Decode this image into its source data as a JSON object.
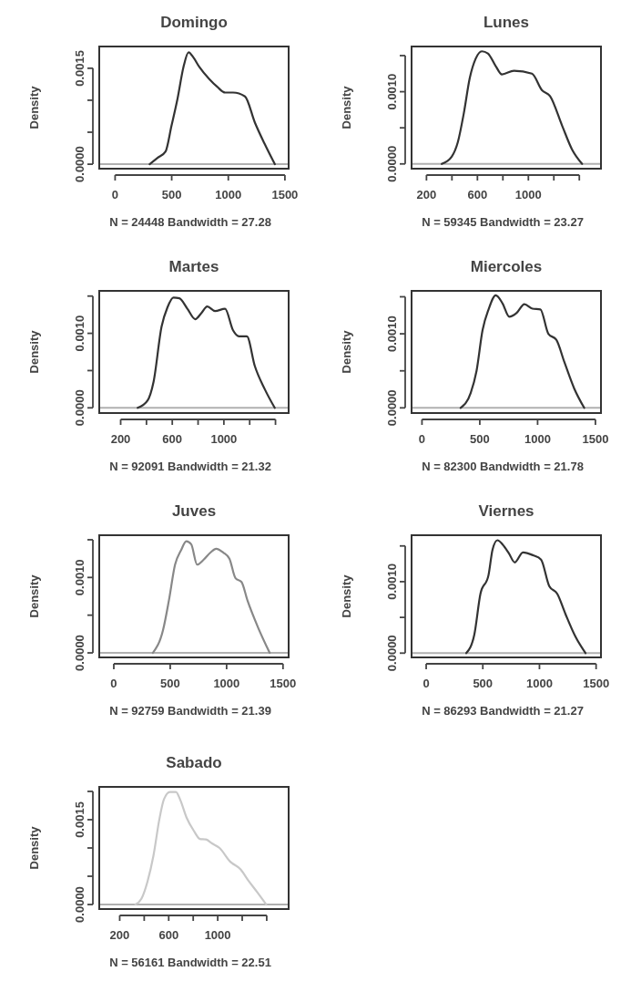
{
  "chart_data": [
    {
      "type": "line",
      "title": "Domingo",
      "xlabel": "N = 24448   Bandwidth = 27.28",
      "ylabel": "Density",
      "x": [
        305,
        375,
        446,
        498,
        551,
        604,
        649,
        691,
        744,
        832,
        902,
        972,
        1042,
        1147,
        1235,
        1323,
        1411
      ],
      "series": [
        {
          "color": "#333333",
          "values": [
            0,
            0.0001,
            0.0002,
            0.0006,
            0.00102,
            0.00152,
            0.00175,
            0.00167,
            0.00152,
            0.00133,
            0.00121,
            0.00112,
            0.00112,
            0.00106,
            0.00065,
            0.00031,
            0
          ]
        }
      ],
      "xlim": [
        -140,
        1533
      ],
      "ylim": [
        -7e-05,
        0.00184
      ],
      "xticks": [
        0,
        500,
        1000,
        1500
      ],
      "yticks": [
        {
          "value": 0,
          "label": "0.0000"
        },
        {
          "value": 0.0005,
          "label": null
        },
        {
          "value": 0.001,
          "label": null
        },
        {
          "value": 0.0015,
          "label": "0.0015"
        }
      ],
      "ref_lines": [
        {
          "axis": "y",
          "value": 0,
          "color": "#b0b0b0"
        }
      ]
    },
    {
      "type": "line",
      "title": "Lunes",
      "xlabel": "N = 59345   Bandwidth = 23.27",
      "ylabel": "Density",
      "x": [
        320,
        398,
        446,
        493,
        540,
        587,
        635,
        682,
        745,
        792,
        887,
        1028,
        1107,
        1170,
        1265,
        1343,
        1422
      ],
      "series": [
        {
          "color": "#333333",
          "values": [
            0,
            0.0001,
            0.0003,
            0.0007,
            0.00119,
            0.00146,
            0.00156,
            0.00153,
            0.00135,
            0.00124,
            0.00129,
            0.00125,
            0.00102,
            0.00094,
            0.00053,
            0.0002,
            0
          ]
        }
      ],
      "xlim": [
        83,
        1570
      ],
      "ylim": [
        -6.6e-05,
        0.001626
      ],
      "xticks": [
        200,
        {
          "value": 400,
          "label": null
        },
        600,
        {
          "value": 800,
          "label": null
        },
        1000,
        {
          "value": 1200,
          "label": null
        },
        {
          "value": 1400,
          "label": null
        }
      ],
      "yticks": [
        {
          "value": 0,
          "label": "0.0000"
        },
        {
          "value": 0.0005,
          "label": null
        },
        {
          "value": 0.001,
          "label": "0.0010"
        },
        {
          "value": 0.0015,
          "label": null
        }
      ],
      "ref_lines": [
        {
          "axis": "y",
          "value": 0,
          "color": "#b0b0b0"
        }
      ]
    },
    {
      "type": "line",
      "title": "Martes",
      "xlabel": "N = 92091   Bandwidth = 21.32",
      "ylabel": "Density",
      "x": [
        332,
        409,
        455,
        517,
        563,
        609,
        655,
        717,
        778,
        825,
        871,
        932,
        1009,
        1071,
        1117,
        1178,
        1240,
        1317,
        1394
      ],
      "series": [
        {
          "color": "#333333",
          "values": [
            0,
            0.0001,
            0.00035,
            0.00109,
            0.00135,
            0.00148,
            0.00147,
            0.00133,
            0.00119,
            0.00127,
            0.00136,
            0.0013,
            0.00133,
            0.00104,
            0.00096,
            0.00096,
            0.00056,
            0.00025,
            0
          ]
        }
      ],
      "xlim": [
        34,
        1502
      ],
      "ylim": [
        -7e-05,
        0.00157
      ],
      "xticks": [
        200,
        {
          "value": 400,
          "label": null
        },
        600,
        {
          "value": 800,
          "label": null
        },
        1000,
        {
          "value": 1200,
          "label": null
        },
        {
          "value": 1400,
          "label": null
        }
      ],
      "yticks": [
        {
          "value": 0,
          "label": "0.0000"
        },
        {
          "value": 0.0005,
          "label": null
        },
        {
          "value": 0.001,
          "label": "0.0010"
        },
        {
          "value": 0.0015,
          "label": null
        }
      ],
      "ref_lines": [
        {
          "axis": "y",
          "value": 0,
          "color": "#b0b0b0"
        }
      ]
    },
    {
      "type": "line",
      "title": "Miercoles",
      "xlabel": "N = 82300   Bandwidth = 21.78",
      "ylabel": "Density",
      "x": [
        334,
        421,
        472,
        524,
        576,
        638,
        697,
        755,
        817,
        886,
        955,
        1024,
        1093,
        1162,
        1231,
        1317,
        1403
      ],
      "series": [
        {
          "color": "#333333",
          "values": [
            0,
            0.0002,
            0.0005,
            0.00105,
            0.00133,
            0.00152,
            0.00141,
            0.00123,
            0.00128,
            0.0014,
            0.00134,
            0.00133,
            0.001,
            0.00092,
            0.00062,
            0.00026,
            0
          ]
        }
      ],
      "xlim": [
        -90,
        1548
      ],
      "ylim": [
        -7e-05,
        0.00158
      ],
      "xticks": [
        0,
        500,
        1000,
        1500
      ],
      "yticks": [
        {
          "value": 0,
          "label": "0.0000"
        },
        {
          "value": 0.0005,
          "label": null
        },
        {
          "value": 0.001,
          "label": "0.0010"
        },
        {
          "value": 0.0015,
          "label": null
        }
      ],
      "ref_lines": [
        {
          "axis": "y",
          "value": 0,
          "color": "#b0b0b0"
        }
      ]
    },
    {
      "type": "line",
      "title": "Juves",
      "xlabel": "N = 92759   Bandwidth = 21.39",
      "ylabel": "Density",
      "x": [
        346,
        436,
        489,
        543,
        596,
        643,
        686,
        739,
        793,
        857,
        907,
        971,
        1025,
        1079,
        1132,
        1186,
        1275,
        1382
      ],
      "series": [
        {
          "color": "#888888",
          "values": [
            0,
            0.0003,
            0.0007,
            0.00117,
            0.00136,
            0.00148,
            0.00144,
            0.00117,
            0.00123,
            0.00133,
            0.00138,
            0.00133,
            0.00125,
            0.00099,
            0.00094,
            0.00069,
            0.00035,
            0
          ]
        }
      ],
      "xlim": [
        -129,
        1550
      ],
      "ylim": [
        -6e-05,
        0.00156
      ],
      "xticks": [
        0,
        500,
        1000,
        1500
      ],
      "yticks": [
        {
          "value": 0,
          "label": "0.0000"
        },
        {
          "value": 0.0005,
          "label": null
        },
        {
          "value": 0.001,
          "label": "0.0010"
        },
        {
          "value": 0.0015,
          "label": null
        }
      ],
      "ref_lines": [
        {
          "axis": "y",
          "value": 0,
          "color": "#b0b0b0"
        }
      ]
    },
    {
      "type": "line",
      "title": "Viernes",
      "xlabel": "N = 86293   Bandwidth = 21.27",
      "ylabel": "Density",
      "x": [
        354,
        425,
        479,
        550,
        586,
        629,
        675,
        729,
        782,
        854,
        943,
        1014,
        1086,
        1157,
        1229,
        1318,
        1407
      ],
      "series": [
        {
          "color": "#333333",
          "values": [
            0,
            0.00026,
            0.00083,
            0.00109,
            0.00145,
            0.00158,
            0.00152,
            0.0014,
            0.00127,
            0.00141,
            0.00137,
            0.00131,
            0.00094,
            0.00083,
            0.00055,
            0.00023,
            0
          ]
        }
      ],
      "xlim": [
        -129,
        1543
      ],
      "ylim": [
        -6e-05,
        0.00165
      ],
      "xticks": [
        0,
        500,
        1000,
        1500
      ],
      "yticks": [
        {
          "value": 0,
          "label": "0.0000"
        },
        {
          "value": 0.0005,
          "label": null
        },
        {
          "value": 0.001,
          "label": "0.0010"
        },
        {
          "value": 0.0015,
          "label": null
        }
      ],
      "ref_lines": [
        {
          "axis": "y",
          "value": 0,
          "color": "#b0b0b0"
        }
      ]
    },
    {
      "type": "line",
      "title": "Sabado",
      "xlabel": "N = 56161   Bandwidth = 22.51",
      "ylabel": "Density",
      "x": [
        328,
        377,
        426,
        475,
        524,
        561,
        610,
        659,
        696,
        745,
        806,
        855,
        904,
        954,
        1015,
        1101,
        1187,
        1248,
        1322,
        1396
      ],
      "series": [
        {
          "color": "#c8c8c8",
          "values": [
            0,
            0.0001,
            0.0004,
            0.00086,
            0.00151,
            0.00186,
            0.00199,
            0.00199,
            0.00184,
            0.00154,
            0.0013,
            0.00116,
            0.00115,
            0.00108,
            0.001,
            0.00076,
            0.00062,
            0.00043,
            0.00022,
            0
          ]
        }
      ],
      "xlim": [
        33,
        1579
      ],
      "ylim": [
        -8e-05,
        0.00208
      ],
      "xticks": [
        200,
        {
          "value": 400,
          "label": null
        },
        600,
        {
          "value": 800,
          "label": null
        },
        1000,
        {
          "value": 1200,
          "label": null
        },
        {
          "value": 1400,
          "label": null
        }
      ],
      "yticks": [
        {
          "value": 0,
          "label": "0.0000"
        },
        {
          "value": 0.0005,
          "label": null
        },
        {
          "value": 0.001,
          "label": null
        },
        {
          "value": 0.0015,
          "label": "0.0015"
        },
        {
          "value": 0.002,
          "label": null
        }
      ],
      "ref_lines": [
        {
          "axis": "y",
          "value": 0,
          "color": "#b0b0b0"
        }
      ]
    }
  ]
}
